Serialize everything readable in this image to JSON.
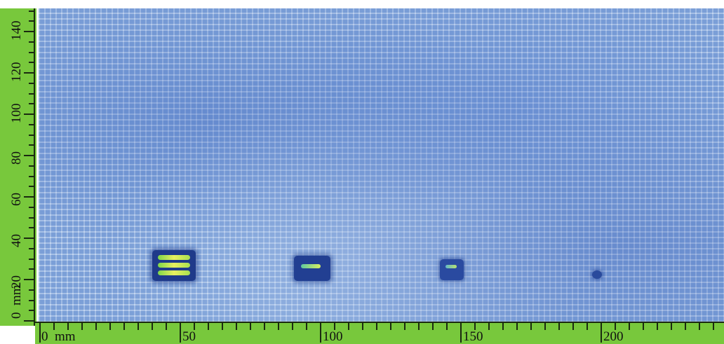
{
  "image": {
    "x_axis": {
      "unit": "mm",
      "origin_label": "0  mm",
      "labels": [
        "50",
        "100",
        "150",
        "200"
      ],
      "range": [
        0,
        242
      ]
    },
    "y_axis": {
      "unit": "mm",
      "origin_label": "0  mm",
      "labels": [
        "20",
        "40",
        "60",
        "80",
        "100",
        "120",
        "140"
      ],
      "range": [
        0,
        150
      ]
    },
    "colors": {
      "ruler": "#78c83c",
      "background": "#8fb2e2",
      "defect_core": "#1f3a8a",
      "defect_highlight": "#d8ee60"
    }
  }
}
